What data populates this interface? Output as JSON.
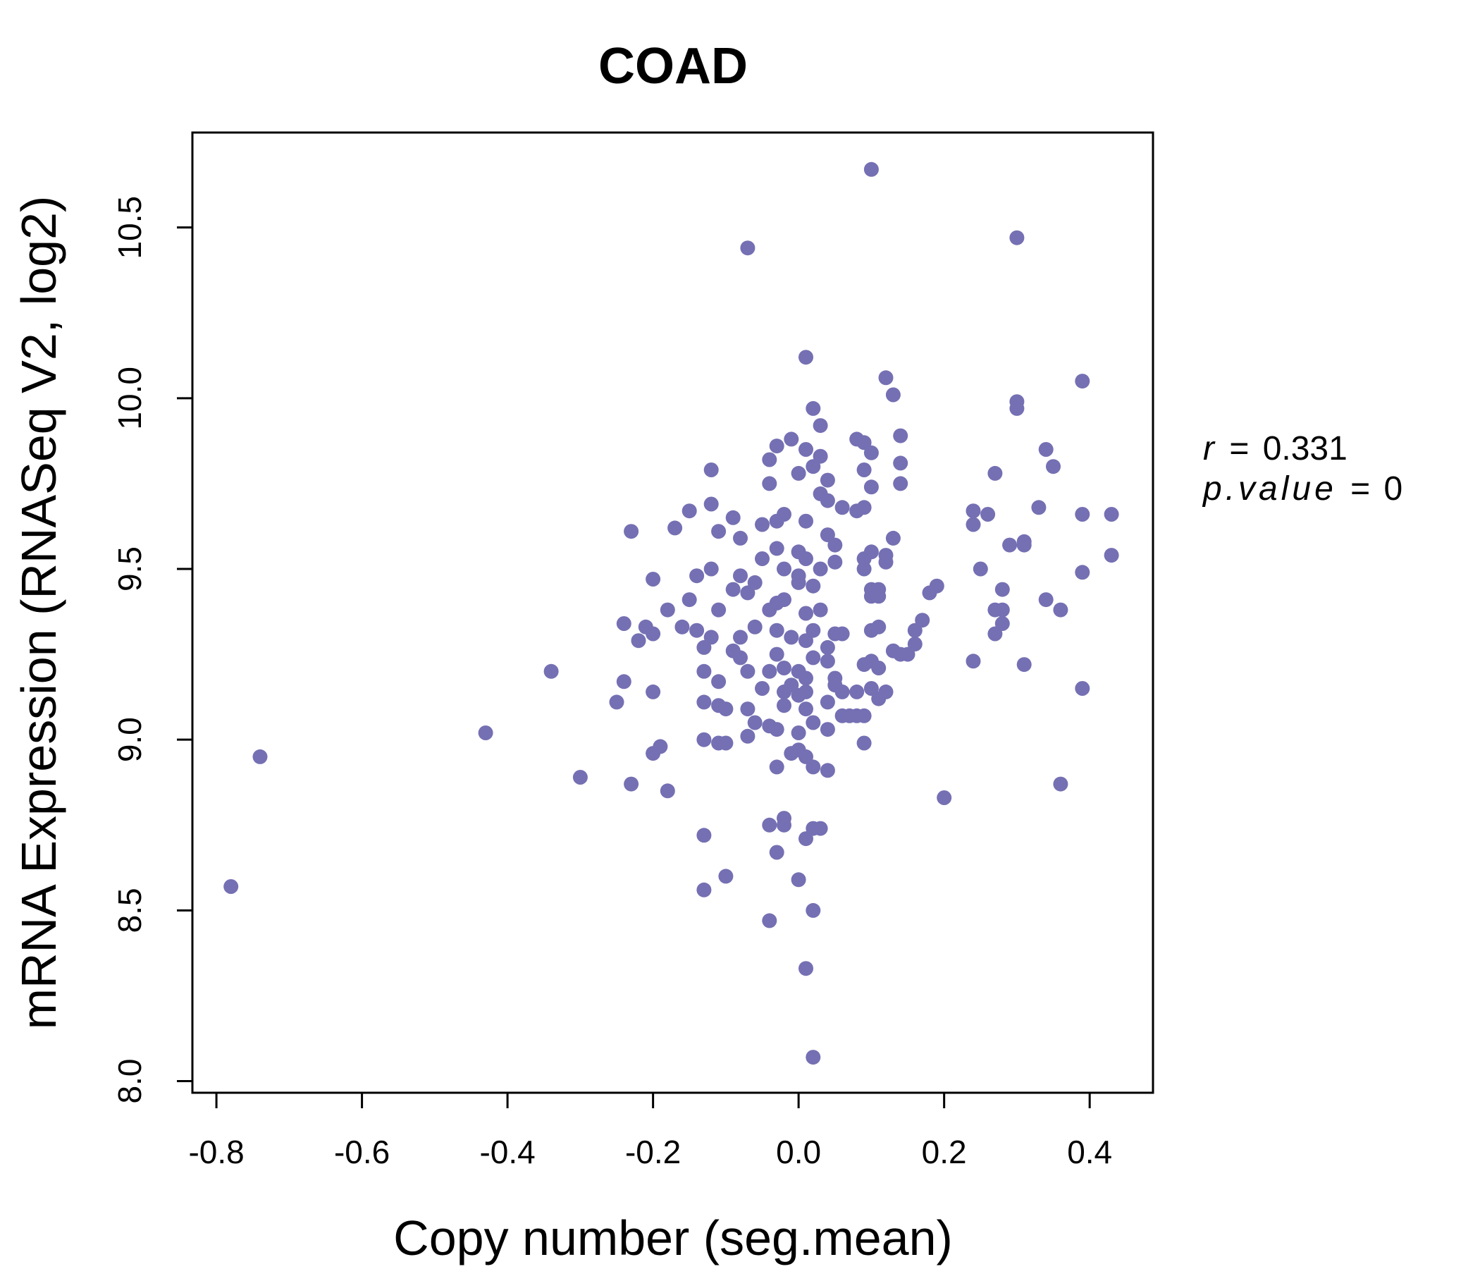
{
  "colors": {
    "point": "#7570b3",
    "title": "#7570b3",
    "axis": "#000000",
    "background": "#ffffff"
  },
  "stats": {
    "r_symbol": "r",
    "r_value": "0.331",
    "p_symbol": "p.value",
    "p_value": "0",
    "eq": "="
  },
  "chart_data": {
    "type": "scatter",
    "title": "COAD",
    "xlabel": "Copy number (seg.mean)",
    "ylabel": "mRNA Expression (RNASeq V2, log2)",
    "xlim": [
      -0.833,
      0.487
    ],
    "ylim": [
      7.966,
      10.778
    ],
    "xticks": [
      -0.8,
      -0.6,
      -0.4,
      -0.2,
      0.0,
      0.2,
      0.4
    ],
    "xtick_labels": [
      "-0.8",
      "-0.6",
      "-0.4",
      "-0.2",
      "0.0",
      "0.2",
      "0.4"
    ],
    "yticks": [
      8.0,
      8.5,
      9.0,
      9.5,
      10.0,
      10.5
    ],
    "ytick_labels": [
      "8.0",
      "8.5",
      "9.0",
      "9.5",
      "10.0",
      "10.5"
    ],
    "points": [
      [
        0.1,
        10.67
      ],
      [
        0.3,
        10.47
      ],
      [
        -0.07,
        10.44
      ],
      [
        0.01,
        10.12
      ],
      [
        0.12,
        10.06
      ],
      [
        0.13,
        10.01
      ],
      [
        0.39,
        10.05
      ],
      [
        0.3,
        9.99
      ],
      [
        0.3,
        9.97
      ],
      [
        0.02,
        9.97
      ],
      [
        0.03,
        9.92
      ],
      [
        0.14,
        9.89
      ],
      [
        0.08,
        9.88
      ],
      [
        0.09,
        9.87
      ],
      [
        -0.03,
        9.86
      ],
      [
        -0.01,
        9.88
      ],
      [
        0.01,
        9.85
      ],
      [
        0.1,
        9.84
      ],
      [
        0.03,
        9.83
      ],
      [
        0.34,
        9.85
      ],
      [
        0.35,
        9.8
      ],
      [
        0.14,
        9.81
      ],
      [
        0.09,
        9.79
      ],
      [
        0.27,
        9.78
      ],
      [
        -0.04,
        9.82
      ],
      [
        0.0,
        9.78
      ],
      [
        0.02,
        9.8
      ],
      [
        0.04,
        9.76
      ],
      [
        -0.12,
        9.79
      ],
      [
        -0.04,
        9.75
      ],
      [
        0.14,
        9.75
      ],
      [
        0.1,
        9.74
      ],
      [
        0.03,
        9.72
      ],
      [
        0.04,
        9.7
      ],
      [
        -0.12,
        9.69
      ],
      [
        -0.15,
        9.67
      ],
      [
        0.24,
        9.67
      ],
      [
        0.26,
        9.66
      ],
      [
        0.33,
        9.68
      ],
      [
        0.39,
        9.66
      ],
      [
        0.43,
        9.66
      ],
      [
        0.06,
        9.68
      ],
      [
        0.08,
        9.67
      ],
      [
        0.09,
        9.68
      ],
      [
        -0.02,
        9.66
      ],
      [
        -0.03,
        9.64
      ],
      [
        -0.05,
        9.63
      ],
      [
        0.01,
        9.64
      ],
      [
        -0.09,
        9.65
      ],
      [
        -0.17,
        9.62
      ],
      [
        -0.23,
        9.61
      ],
      [
        -0.11,
        9.61
      ],
      [
        0.04,
        9.6
      ],
      [
        0.24,
        9.63
      ],
      [
        0.13,
        9.59
      ],
      [
        0.05,
        9.57
      ],
      [
        0.29,
        9.57
      ],
      [
        0.31,
        9.58
      ],
      [
        0.31,
        9.57
      ],
      [
        -0.08,
        9.59
      ],
      [
        -0.03,
        9.56
      ],
      [
        0.0,
        9.55
      ],
      [
        0.1,
        9.55
      ],
      [
        -0.05,
        9.53
      ],
      [
        0.09,
        9.53
      ],
      [
        0.12,
        9.54
      ],
      [
        0.12,
        9.52
      ],
      [
        0.05,
        9.52
      ],
      [
        0.01,
        9.53
      ],
      [
        0.43,
        9.54
      ],
      [
        0.25,
        9.5
      ],
      [
        0.39,
        9.49
      ],
      [
        -0.14,
        9.48
      ],
      [
        -0.12,
        9.5
      ],
      [
        -0.08,
        9.48
      ],
      [
        -0.02,
        9.5
      ],
      [
        0.0,
        9.48
      ],
      [
        0.03,
        9.5
      ],
      [
        0.09,
        9.5
      ],
      [
        -0.2,
        9.47
      ],
      [
        -0.06,
        9.46
      ],
      [
        0.0,
        9.46
      ],
      [
        0.02,
        9.45
      ],
      [
        0.1,
        9.44
      ],
      [
        0.11,
        9.44
      ],
      [
        0.18,
        9.43
      ],
      [
        0.19,
        9.45
      ],
      [
        0.28,
        9.44
      ],
      [
        -0.09,
        9.44
      ],
      [
        -0.07,
        9.43
      ],
      [
        0.1,
        9.42
      ],
      [
        0.11,
        9.42
      ],
      [
        -0.15,
        9.41
      ],
      [
        -0.02,
        9.41
      ],
      [
        0.34,
        9.41
      ],
      [
        0.36,
        9.38
      ],
      [
        0.27,
        9.38
      ],
      [
        0.28,
        9.38
      ],
      [
        -0.18,
        9.38
      ],
      [
        -0.11,
        9.38
      ],
      [
        -0.04,
        9.38
      ],
      [
        -0.03,
        9.4
      ],
      [
        0.01,
        9.37
      ],
      [
        0.03,
        9.38
      ],
      [
        0.17,
        9.35
      ],
      [
        0.28,
        9.34
      ],
      [
        -0.24,
        9.34
      ],
      [
        -0.21,
        9.33
      ],
      [
        -0.16,
        9.33
      ],
      [
        -0.14,
        9.32
      ],
      [
        -0.06,
        9.33
      ],
      [
        -0.03,
        9.32
      ],
      [
        0.02,
        9.32
      ],
      [
        0.05,
        9.31
      ],
      [
        0.06,
        9.31
      ],
      [
        0.1,
        9.32
      ],
      [
        0.11,
        9.33
      ],
      [
        0.16,
        9.32
      ],
      [
        -0.2,
        9.31
      ],
      [
        -0.22,
        9.29
      ],
      [
        -0.12,
        9.3
      ],
      [
        -0.08,
        9.3
      ],
      [
        -0.01,
        9.3
      ],
      [
        0.01,
        9.29
      ],
      [
        0.27,
        9.31
      ],
      [
        0.16,
        9.28
      ],
      [
        0.04,
        9.27
      ],
      [
        -0.13,
        9.27
      ],
      [
        -0.09,
        9.26
      ],
      [
        0.13,
        9.26
      ],
      [
        0.15,
        9.25
      ],
      [
        0.14,
        9.25
      ],
      [
        -0.03,
        9.25
      ],
      [
        0.02,
        9.24
      ],
      [
        -0.08,
        9.24
      ],
      [
        0.04,
        9.23
      ],
      [
        0.24,
        9.23
      ],
      [
        0.31,
        9.22
      ],
      [
        0.09,
        9.22
      ],
      [
        0.1,
        9.23
      ],
      [
        0.11,
        9.21
      ],
      [
        -0.02,
        9.21
      ],
      [
        0.0,
        9.2
      ],
      [
        -0.04,
        9.2
      ],
      [
        -0.07,
        9.2
      ],
      [
        -0.13,
        9.2
      ],
      [
        -0.34,
        9.2
      ],
      [
        0.05,
        9.18
      ],
      [
        0.01,
        9.18
      ],
      [
        -0.11,
        9.17
      ],
      [
        -0.24,
        9.17
      ],
      [
        -0.01,
        9.16
      ],
      [
        0.05,
        9.16
      ],
      [
        0.1,
        9.15
      ],
      [
        0.39,
        9.15
      ],
      [
        -0.2,
        9.14
      ],
      [
        -0.05,
        9.15
      ],
      [
        0.06,
        9.14
      ],
      [
        0.08,
        9.14
      ],
      [
        0.12,
        9.14
      ],
      [
        -0.02,
        9.14
      ],
      [
        0.0,
        9.13
      ],
      [
        0.01,
        9.14
      ],
      [
        0.11,
        9.12
      ],
      [
        -0.25,
        9.11
      ],
      [
        -0.13,
        9.11
      ],
      [
        -0.11,
        9.1
      ],
      [
        -0.1,
        9.09
      ],
      [
        0.04,
        9.11
      ],
      [
        -0.02,
        9.1
      ],
      [
        0.01,
        9.09
      ],
      [
        -0.07,
        9.09
      ],
      [
        0.06,
        9.07
      ],
      [
        0.07,
        9.07
      ],
      [
        0.08,
        9.07
      ],
      [
        0.09,
        9.07
      ],
      [
        -0.06,
        9.05
      ],
      [
        0.02,
        9.05
      ],
      [
        0.04,
        9.03
      ],
      [
        -0.43,
        9.02
      ],
      [
        -0.04,
        9.04
      ],
      [
        -0.03,
        9.03
      ],
      [
        0.0,
        9.02
      ],
      [
        -0.07,
        9.01
      ],
      [
        -0.13,
        9.0
      ],
      [
        -0.1,
        8.99
      ],
      [
        -0.11,
        8.99
      ],
      [
        0.09,
        8.99
      ],
      [
        -0.19,
        8.98
      ],
      [
        -0.2,
        8.96
      ],
      [
        0.0,
        8.97
      ],
      [
        -0.01,
        8.96
      ],
      [
        -0.74,
        8.95
      ],
      [
        0.01,
        8.95
      ],
      [
        -0.03,
        8.92
      ],
      [
        0.02,
        8.92
      ],
      [
        0.04,
        8.91
      ],
      [
        -0.3,
        8.89
      ],
      [
        -0.23,
        8.87
      ],
      [
        -0.18,
        8.85
      ],
      [
        0.36,
        8.87
      ],
      [
        0.2,
        8.83
      ],
      [
        -0.02,
        8.77
      ],
      [
        -0.04,
        8.75
      ],
      [
        -0.02,
        8.75
      ],
      [
        0.02,
        8.74
      ],
      [
        0.03,
        8.74
      ],
      [
        0.01,
        8.71
      ],
      [
        -0.13,
        8.72
      ],
      [
        -0.03,
        8.67
      ],
      [
        0.0,
        8.59
      ],
      [
        -0.1,
        8.6
      ],
      [
        -0.13,
        8.56
      ],
      [
        -0.04,
        8.47
      ],
      [
        0.02,
        8.5
      ],
      [
        -0.78,
        8.57
      ],
      [
        0.01,
        8.33
      ],
      [
        0.02,
        8.07
      ]
    ]
  }
}
